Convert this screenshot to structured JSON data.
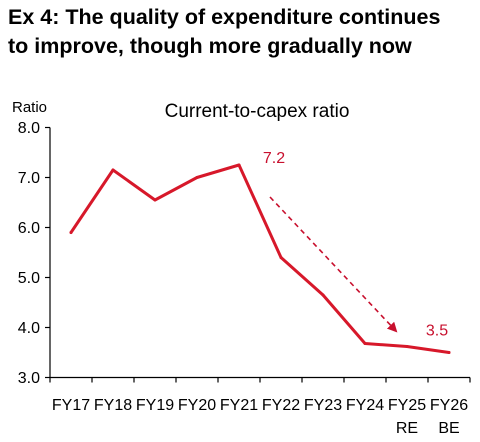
{
  "header": {
    "title_line1": "Ex 4: The quality of expenditure continues",
    "title_line2": "to improve, though more gradually now"
  },
  "chart_data": {
    "type": "line",
    "title": "Current-to-capex ratio",
    "ylabel": "Ratio",
    "xlabel": "",
    "ylim": [
      3.0,
      8.0
    ],
    "yticks": [
      "3.0",
      "4.0",
      "5.0",
      "6.0",
      "7.0",
      "8.0"
    ],
    "categories": [
      "FY17",
      "FY18",
      "FY19",
      "FY20",
      "FY21",
      "FY22",
      "FY23",
      "FY24",
      "FY25",
      "FY26"
    ],
    "category_sublabels": [
      "",
      "",
      "",
      "",
      "",
      "",
      "",
      "",
      "RE",
      "BE"
    ],
    "series": [
      {
        "values": [
          5.9,
          7.15,
          6.55,
          7.0,
          7.25,
          5.4,
          4.65,
          3.68,
          3.62,
          3.5
        ]
      }
    ],
    "annotations": [
      {
        "text": "7.2",
        "at_category": "FY21"
      },
      {
        "text": "3.5",
        "at_category": "FY26"
      }
    ],
    "grid": false,
    "colors": {
      "line": "#d7182a",
      "annotation": "#c8102e",
      "axis": "#000000"
    }
  }
}
